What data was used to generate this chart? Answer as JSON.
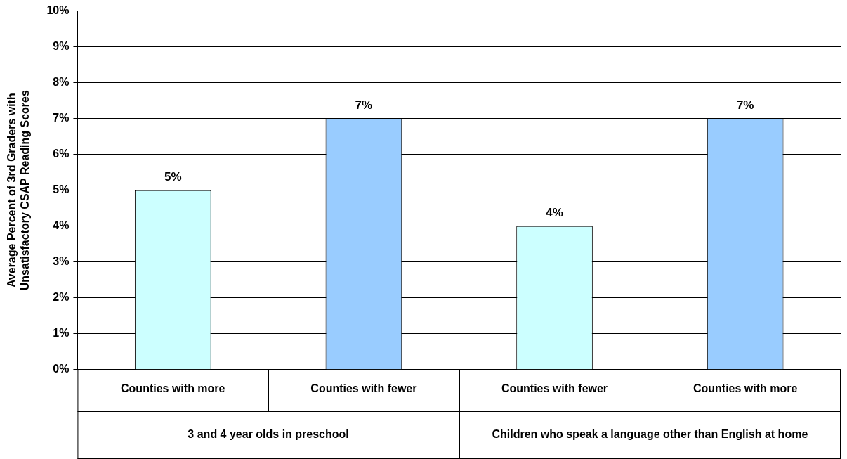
{
  "chart_data": {
    "type": "bar",
    "ylabel": "Average Percent of 3rd Graders with Unsatisfactory CSAP Reading Scores",
    "categories": [
      "Counties with more",
      "Counties with fewer",
      "Counties with fewer",
      "Counties with more"
    ],
    "values": [
      5,
      7,
      4,
      7
    ],
    "colors": [
      "#ccffff",
      "#99ccff",
      "#ccffff",
      "#99ccff"
    ],
    "value_labels": [
      "5%",
      "7%",
      "4%",
      "7%"
    ],
    "annotations": [
      "3 and 4 year olds in preschool",
      "Children who speak a language other than English at home"
    ],
    "ylim": [
      0,
      10
    ],
    "yticks": [
      {
        "value": 0,
        "label": "0%"
      },
      {
        "value": 1,
        "label": "1%"
      },
      {
        "value": 2,
        "label": "2%"
      },
      {
        "value": 3,
        "label": "3%"
      },
      {
        "value": 4,
        "label": "4%"
      },
      {
        "value": 5,
        "label": "5%"
      },
      {
        "value": 6,
        "label": "6%"
      },
      {
        "value": 7,
        "label": "7%"
      },
      {
        "value": 8,
        "label": "8%"
      },
      {
        "value": 9,
        "label": "9%"
      },
      {
        "value": 10,
        "label": "10%"
      }
    ],
    "grid": "y",
    "legend": false
  }
}
